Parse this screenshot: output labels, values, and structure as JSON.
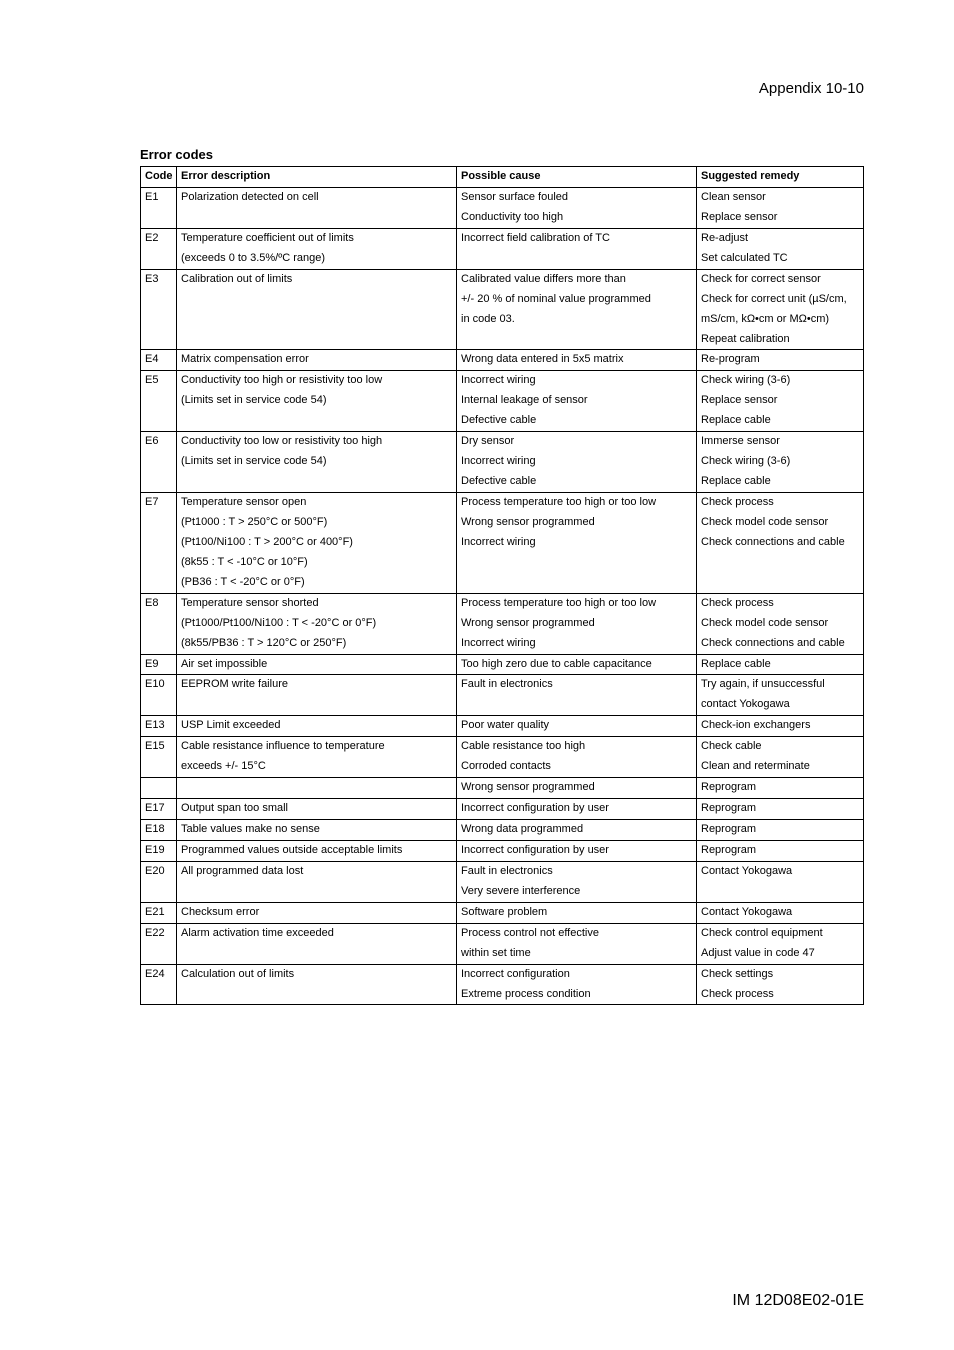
{
  "header": {
    "appendix": "Appendix 10-10"
  },
  "section_title": "Error codes",
  "columns": {
    "code": "Code",
    "desc": "Error description",
    "cause": "Possible cause",
    "remedy": "Suggested remedy"
  },
  "rows": [
    {
      "code": "E1",
      "desc": "Polarization detected on cell",
      "cause": "Sensor surface fouled",
      "remedy": "Clean sensor",
      "cls": "nb-bottom"
    },
    {
      "code": "",
      "desc": "",
      "cause": "Conductivity too high",
      "remedy": "Replace sensor",
      "cls": "nb-top"
    },
    {
      "code": "E2",
      "desc": "Temperature coefficient out of limits",
      "cause": "Incorrect field calibration of TC",
      "remedy": "Re-adjust",
      "cls": "nb-bottom"
    },
    {
      "code": "",
      "desc": "(exceeds 0 to 3.5%/ºC range)",
      "cause": "",
      "remedy": "Set calculated TC",
      "cls": "nb-top"
    },
    {
      "code": "E3",
      "desc": "Calibration out of limits",
      "cause": "Calibrated value differs more than",
      "remedy": "Check for correct sensor",
      "cls": "nb-bottom"
    },
    {
      "code": "",
      "desc": "",
      "cause": "+/- 20 % of nominal value programmed",
      "remedy": "Check for correct unit (µS/cm,",
      "cls": "nb-top nb-bottom"
    },
    {
      "code": "",
      "desc": "",
      "cause": "in code 03.",
      "remedy": "mS/cm, kΩ•cm or MΩ•cm)",
      "cls": "nb-top nb-bottom"
    },
    {
      "code": "",
      "desc": "",
      "cause": "",
      "remedy": "Repeat calibration",
      "cls": "nb-top"
    },
    {
      "code": "E4",
      "desc": "Matrix compensation error",
      "cause": "Wrong data entered in 5x5 matrix",
      "remedy": "Re-program",
      "cls": ""
    },
    {
      "code": "E5",
      "desc": "Conductivity too high or resistivity too low",
      "cause": "Incorrect wiring",
      "remedy": "Check wiring (3-6)",
      "cls": "nb-bottom"
    },
    {
      "code": "",
      "desc": "(Limits set in service code 54)",
      "cause": "Internal leakage of sensor",
      "remedy": "Replace sensor",
      "cls": "nb-top nb-bottom"
    },
    {
      "code": "",
      "desc": "",
      "cause": "Defective cable",
      "remedy": "Replace cable",
      "cls": "nb-top"
    },
    {
      "code": "E6",
      "desc": "Conductivity too low or resistivity too high",
      "cause": "Dry sensor",
      "remedy": "Immerse sensor",
      "cls": "nb-bottom"
    },
    {
      "code": "",
      "desc": "(Limits set in service code 54)",
      "cause": "Incorrect wiring",
      "remedy": "Check wiring (3-6)",
      "cls": "nb-top nb-bottom"
    },
    {
      "code": "",
      "desc": "",
      "cause": "Defective cable",
      "remedy": "Replace cable",
      "cls": "nb-top"
    },
    {
      "code": "E7",
      "desc": "Temperature sensor open",
      "cause": "Process temperature too high or too low",
      "remedy": "Check process",
      "cls": "nb-bottom"
    },
    {
      "code": "",
      "desc": "(Pt1000 : T > 250°C or 500°F)",
      "cause": "Wrong sensor programmed",
      "remedy": "Check model code sensor",
      "cls": "nb-top nb-bottom"
    },
    {
      "code": "",
      "desc": "(Pt100/Ni100 : T > 200°C or 400°F)",
      "cause": "Incorrect wiring",
      "remedy": "Check connections and cable",
      "cls": "nb-top nb-bottom"
    },
    {
      "code": "",
      "desc": "(8k55 : T < -10°C or 10°F)",
      "cause": "",
      "remedy": "",
      "cls": "nb-top nb-bottom"
    },
    {
      "code": "",
      "desc": "(PB36 : T < -20°C or 0°F)",
      "cause": "",
      "remedy": "",
      "cls": "nb-top"
    },
    {
      "code": "E8",
      "desc": "Temperature sensor shorted",
      "cause": "Process temperature too high or too low",
      "remedy": "Check process",
      "cls": "nb-bottom"
    },
    {
      "code": "",
      "desc": "(Pt1000/Pt100/Ni100 : T < -20°C or 0°F)",
      "cause": "Wrong sensor programmed",
      "remedy": "Check model code sensor",
      "cls": "nb-top nb-bottom"
    },
    {
      "code": "",
      "desc": "(8k55/PB36 : T > 120°C or 250°F)",
      "cause": "Incorrect wiring",
      "remedy": "Check connections and cable",
      "cls": "nb-top"
    },
    {
      "code": "E9",
      "desc": "Air set impossible",
      "cause": "Too high zero due to cable capacitance",
      "remedy": "Replace cable",
      "cls": ""
    },
    {
      "code": "E10",
      "desc": "EEPROM write failure",
      "cause": "Fault in electronics",
      "remedy": "Try again, if unsuccessful",
      "cls": "nb-bottom"
    },
    {
      "code": "",
      "desc": "",
      "cause": "",
      "remedy": "contact Yokogawa",
      "cls": "nb-top"
    },
    {
      "code": "E13",
      "desc": "USP Limit exceeded",
      "cause": "Poor water quality",
      "remedy": "Check-ion exchangers",
      "cls": ""
    },
    {
      "code": "E15",
      "desc": "Cable resistance influence to temperature",
      "cause": "Cable resistance too high",
      "remedy": "Check cable",
      "cls": "nb-bottom"
    },
    {
      "code": "",
      "desc": "exceeds +/- 15°C",
      "cause": "Corroded contacts",
      "remedy": "Clean and reterminate",
      "cls": "nb-top"
    },
    {
      "code": "",
      "desc": "",
      "cause": "Wrong sensor programmed",
      "remedy": "Reprogram",
      "cls": ""
    },
    {
      "code": "E17",
      "desc": "Output span too small",
      "cause": "Incorrect configuration by user",
      "remedy": "Reprogram",
      "cls": ""
    },
    {
      "code": "E18",
      "desc": "Table values make no sense",
      "cause": "Wrong data programmed",
      "remedy": "Reprogram",
      "cls": ""
    },
    {
      "code": "E19",
      "desc": "Programmed values outside acceptable limits",
      "cause": "Incorrect configuration by user",
      "remedy": "Reprogram",
      "cls": ""
    },
    {
      "code": "E20",
      "desc": "All programmed data lost",
      "cause": "Fault in electronics",
      "remedy": "Contact Yokogawa",
      "cls": "nb-bottom"
    },
    {
      "code": "",
      "desc": "",
      "cause": "Very severe interference",
      "remedy": "",
      "cls": "nb-top"
    },
    {
      "code": "E21",
      "desc": "Checksum error",
      "cause": "Software problem",
      "remedy": "Contact Yokogawa",
      "cls": ""
    },
    {
      "code": "E22",
      "desc": "Alarm activation time exceeded",
      "cause": "Process control not effective",
      "remedy": "Check control equipment",
      "cls": "nb-bottom"
    },
    {
      "code": "",
      "desc": "",
      "cause": "within set time",
      "remedy": "Adjust value in code 47",
      "cls": "nb-top"
    },
    {
      "code": "E24",
      "desc": "Calculation out of limits",
      "cause": "Incorrect configuration",
      "remedy": "Check settings",
      "cls": "nb-bottom"
    },
    {
      "code": "",
      "desc": "",
      "cause": "Extreme process condition",
      "remedy": "Check process",
      "cls": "nb-top"
    }
  ],
  "footer": {
    "doc_id": "IM 12D08E02-01E"
  }
}
